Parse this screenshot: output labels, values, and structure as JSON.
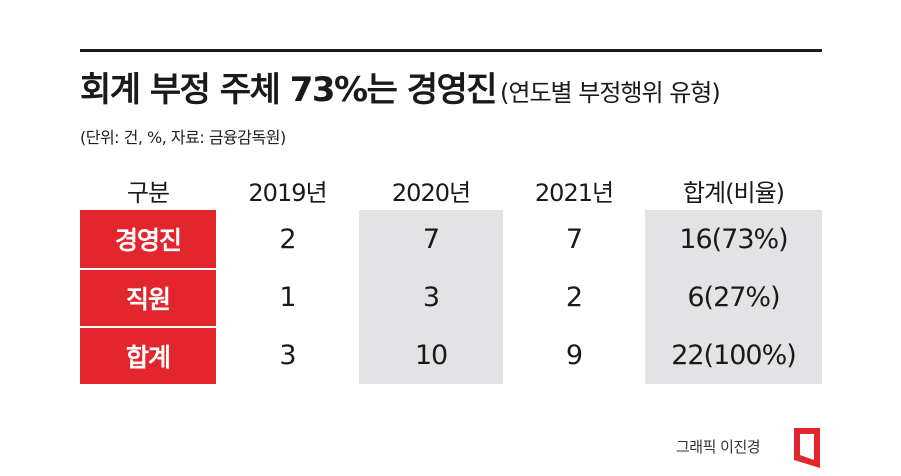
{
  "title": {
    "main": "회계 부정 주체 73%는 경영진",
    "sub": "(연도별 부정행위 유형)"
  },
  "note": "(단위: 건, %, 자료: 금융감독원)",
  "chart_data": {
    "type": "table",
    "columns": [
      "구분",
      "2019년",
      "2020년",
      "2021년",
      "합계(비율)"
    ],
    "rows": [
      {
        "label": "경영진",
        "values": [
          "2",
          "7",
          "7",
          "16(73%)"
        ]
      },
      {
        "label": "직원",
        "values": [
          "1",
          "3",
          "2",
          "6(27%)"
        ]
      },
      {
        "label": "합계",
        "values": [
          "3",
          "10",
          "9",
          "22(100%)"
        ]
      }
    ]
  },
  "colors": {
    "accent": "#e3262d",
    "shade": "#e3e3e5",
    "rule": "#1a1a1a"
  },
  "credit": "그래픽 이진경",
  "logo_icon": "red-bracket-logo-icon"
}
